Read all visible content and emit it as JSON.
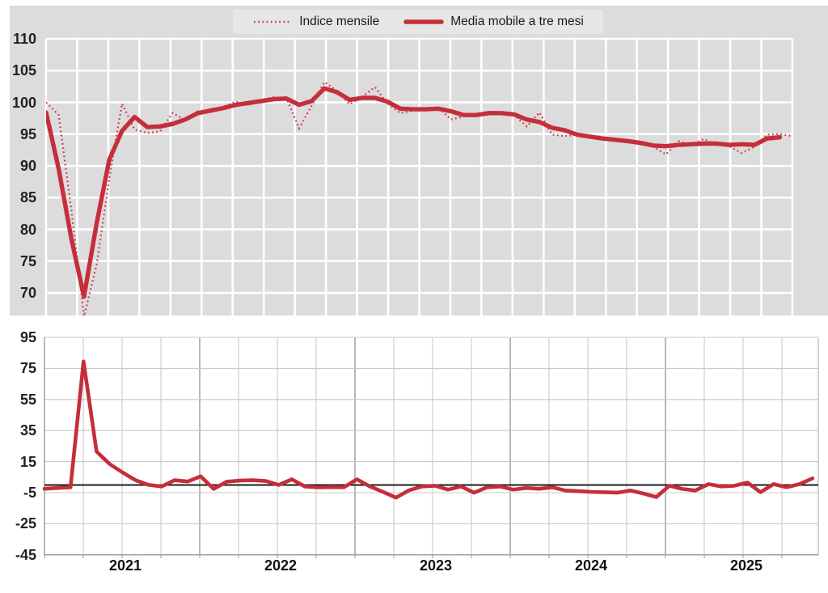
{
  "legend": {
    "items": [
      {
        "label": "Indice mensile",
        "style": "dotted"
      },
      {
        "label": "Media mobile a tre mesi",
        "style": "solid"
      }
    ]
  },
  "colors": {
    "line_red": "#c52e3a",
    "dotted_red": "#cb3f4b",
    "panel_gray": "#dcdcdc",
    "legend_box": "#e6e6e6",
    "grid_white": "#ffffff",
    "grid_light": "#c9c9c9",
    "grid_dark": "#9b9b9b",
    "axis_gray": "#9b9b9b",
    "border_gray": "#b5b5b5",
    "zero_black": "#1c1c1c",
    "text": "#1f1f1f"
  },
  "chart_data": [
    {
      "id": "index-panel",
      "type": "line",
      "title": "",
      "ylabel": "",
      "y_ticks": [
        "110",
        "105",
        "100",
        "95",
        "90",
        "85",
        "80",
        "75",
        "70"
      ],
      "ylim": [
        66.4,
        110
      ],
      "grid": "on",
      "legend_position": "top-center",
      "series": [
        {
          "name": "Indice mensile",
          "style": "dotted",
          "values": [
            100.0,
            98.0,
            83.0,
            66.3,
            74.5,
            88.0,
            99.8,
            95.7,
            95.2,
            95.4,
            98.3,
            97.2,
            98.6,
            98.5,
            99.3,
            100.1,
            99.6,
            100.4,
            100.8,
            100.7,
            95.9,
            99.5,
            103.2,
            101.8,
            99.7,
            100.9,
            102.4,
            99.8,
            98.3,
            98.7,
            99.0,
            99.2,
            97.3,
            97.8,
            98.1,
            98.5,
            98.4,
            98.0,
            96.2,
            98.4,
            94.9,
            94.7,
            94.9,
            94.5,
            94.2,
            94.0,
            93.8,
            93.4,
            93.0,
            91.8,
            93.9,
            93.3,
            94.2,
            93.3,
            93.1,
            92.0,
            93.0,
            94.9,
            95.0,
            94.7
          ]
        },
        {
          "name": "Media mobile a tre mesi",
          "style": "solid",
          "values": [
            98.4,
            89.5,
            78.5,
            69.4,
            81.0,
            91.0,
            95.5,
            97.7,
            96.1,
            96.2,
            96.6,
            97.3,
            98.3,
            98.7,
            99.1,
            99.6,
            99.9,
            100.2,
            100.5,
            100.6,
            99.6,
            100.2,
            102.2,
            101.6,
            100.4,
            100.7,
            100.7,
            100.1,
            99.0,
            98.9,
            98.9,
            99.0,
            98.6,
            98.0,
            98.0,
            98.3,
            98.3,
            98.1,
            97.3,
            96.9,
            96.0,
            95.6,
            94.9,
            94.6,
            94.3,
            94.1,
            93.9,
            93.6,
            93.2,
            93.1,
            93.3,
            93.4,
            93.5,
            93.5,
            93.3,
            93.4,
            93.3,
            94.3,
            94.5
          ]
        }
      ]
    },
    {
      "id": "variation-panel",
      "type": "line",
      "title": "",
      "ylabel": "",
      "y_ticks": [
        "95",
        "75",
        "55",
        "35",
        "15",
        "-5",
        "-25",
        "-45"
      ],
      "ylim": [
        -45,
        95
      ],
      "x_tick_labels": [
        "2021",
        "2022",
        "2023",
        "2024",
        "2025"
      ],
      "zero_line": 0,
      "grid": "on",
      "series": [
        {
          "name": "",
          "style": "solid",
          "values": [
            -2.5,
            -2.0,
            -1.5,
            79.5,
            21.5,
            13.5,
            8.0,
            3.0,
            0.0,
            -1.0,
            3.0,
            2.2,
            5.5,
            -2.6,
            2.1,
            2.8,
            3.0,
            2.5,
            0.0,
            3.6,
            -1.0,
            -1.6,
            -1.4,
            -1.5,
            3.6,
            -1.0,
            -4.5,
            -8.2,
            -3.5,
            -1.0,
            -0.5,
            -3.0,
            -1.0,
            -5.0,
            -1.5,
            -1.0,
            -3.0,
            -2.0,
            -2.5,
            -1.5,
            -3.6,
            -4.0,
            -4.5,
            -4.7,
            -5.0,
            -3.6,
            -5.5,
            -7.8,
            -0.5,
            -2.6,
            -3.6,
            0.5,
            -1.0,
            -0.5,
            1.5,
            -4.7,
            0.5,
            -1.5,
            0.5,
            4.2
          ]
        }
      ]
    }
  ]
}
